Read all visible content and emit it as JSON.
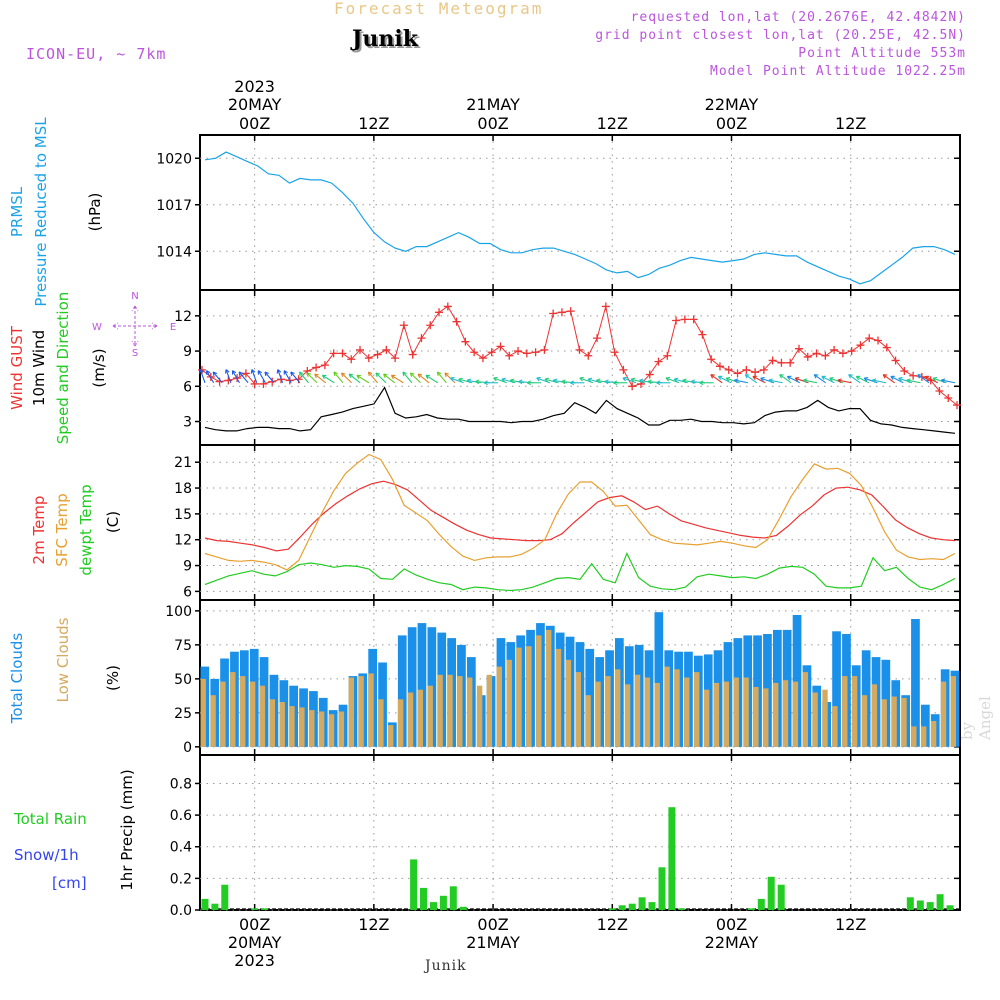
{
  "header": {
    "title_top": "Forecast Meteogram",
    "station": "Junik",
    "model": "ICON-EU, ~ 7km",
    "requested": "requested lon,lat (20.2676E, 42.4842N)",
    "grid_point": "grid point closest lon,lat (20.25E, 42.5N)",
    "point_alt": "Point Altitude 553m",
    "model_alt": "Model Point Altitude 1022.25m",
    "bottom_label": "Junik",
    "watermark": "by Angel"
  },
  "time_axis": {
    "top_year": "2023",
    "ticks": [
      {
        "hour": 0,
        "label": "00Z",
        "date": "20MAY"
      },
      {
        "hour": 12,
        "label": "12Z",
        "date": ""
      },
      {
        "hour": 24,
        "label": "00Z",
        "date": "21MAY"
      },
      {
        "hour": 36,
        "label": "12Z",
        "date": ""
      },
      {
        "hour": 48,
        "label": "00Z",
        "date": "22MAY"
      },
      {
        "hour": 60,
        "label": "12Z",
        "date": ""
      }
    ],
    "bottom_year": "2023",
    "range_hours": [
      -5.5,
      71
    ]
  },
  "colors": {
    "pressure": "#1aa3e8",
    "gust": "#ee3333",
    "wind": "#000000",
    "temp": "#ee3333",
    "sfc_temp": "#e8a030",
    "dewpt": "#22cc22",
    "total_clouds": "#1a90e8",
    "low_clouds": "#d4aa60",
    "rain": "#22cc22",
    "snow": "#3344ee",
    "meta": "#bb55dd",
    "title_top": "#e8c888"
  },
  "chart_data": [
    {
      "type": "line",
      "ylabel_1": "PRMSL",
      "ylabel_2": "Pressure Reduced to MSL",
      "unit": "(hPa)",
      "yticks": [
        1014,
        1017,
        1020
      ],
      "ylim": [
        1011.5,
        1021.5
      ],
      "series": [
        {
          "values": [
            1019.9,
            1020.0,
            1020.4,
            1020.1,
            1019.8,
            1019.5,
            1019.0,
            1018.9,
            1018.4,
            1018.7,
            1018.6,
            1018.6,
            1018.4,
            1017.8,
            1017.1,
            1016.1,
            1015.2,
            1014.6,
            1014.2,
            1014.0,
            1014.3,
            1014.3,
            1014.6,
            1014.9,
            1015.2,
            1014.9,
            1014.5,
            1014.5,
            1014.1,
            1013.9,
            1013.9,
            1014.1,
            1014.2,
            1014.2,
            1014.0,
            1013.8,
            1013.5,
            1013.2,
            1012.8,
            1012.6,
            1012.7,
            1012.3,
            1012.5,
            1012.9,
            1013.1,
            1013.4,
            1013.6,
            1013.5,
            1013.4,
            1013.3,
            1013.4,
            1013.5,
            1013.8,
            1013.9,
            1013.8,
            1013.7,
            1013.7,
            1013.3,
            1013.0,
            1012.7,
            1012.4,
            1012.2,
            1011.9,
            1012.1,
            1012.6,
            1013.1,
            1013.6,
            1014.2,
            1014.3,
            1014.3,
            1014.1,
            1013.8
          ]
        }
      ]
    },
    {
      "type": "line",
      "ylabel_1": "Wind GUST",
      "ylabel_2": "10m Wind",
      "ylabel_3": "Speed and Direction",
      "unit": "(m/s)",
      "compass": {
        "n": "N",
        "s": "S",
        "e": "E",
        "w": "W"
      },
      "yticks": [
        3,
        6,
        9,
        12
      ],
      "ylim": [
        1,
        14.2
      ],
      "gust": [
        7.4,
        6.8,
        6.4,
        6.5,
        6.7,
        7.1,
        6.2,
        6.2,
        6.4,
        6.6,
        6.5,
        6.6,
        7.3,
        7.6,
        7.8,
        8.8,
        8.8,
        8.3,
        9.1,
        8.4,
        8.7,
        9.1,
        8.4,
        11.2,
        8.7,
        10.1,
        11.2,
        12.3,
        12.8,
        11.5,
        9.8,
        8.9,
        8.4,
        8.9,
        9.4,
        8.6,
        9.0,
        8.8,
        8.9,
        9.1,
        12.2,
        12.3,
        12.4,
        9.1,
        8.6,
        10.1,
        12.8,
        8.9,
        7.4,
        6.0,
        6.2,
        7.0,
        8.1,
        8.6,
        11.6,
        11.7,
        11.7,
        10.4,
        8.3,
        7.7,
        7.4,
        7.1,
        7.4,
        7.2,
        7.4,
        8.2,
        8.0,
        8.0,
        9.2,
        8.5,
        8.8,
        8.6,
        9.1,
        8.8,
        9.0,
        9.5,
        10.1,
        9.9,
        9.3,
        8.2,
        7.3,
        6.9,
        6.8,
        6.5,
        5.6,
        5.0,
        4.4
      ],
      "wind": [
        2.5,
        2.3,
        2.2,
        2.2,
        2.4,
        2.5,
        2.5,
        2.4,
        2.4,
        2.2,
        2.3,
        3.4,
        3.6,
        3.8,
        4.1,
        4.3,
        4.5,
        5.9,
        3.7,
        3.3,
        3.4,
        3.6,
        3.3,
        3.2,
        3.2,
        3.0,
        3.0,
        3.0,
        3.0,
        2.9,
        3.0,
        3.0,
        3.2,
        3.5,
        3.7,
        4.6,
        4.2,
        3.7,
        4.8,
        4.1,
        3.7,
        3.3,
        2.7,
        2.7,
        3.1,
        3.1,
        3.2,
        3.0,
        3.0,
        2.9,
        2.9,
        2.8,
        2.9,
        3.5,
        3.8,
        3.9,
        3.9,
        4.2,
        4.8,
        4.2,
        3.9,
        4.1,
        4.1,
        3.1,
        2.8,
        2.7,
        2.5,
        2.4,
        2.3,
        2.2,
        2.1,
        2.0
      ],
      "arrows_hourly": 88
    },
    {
      "type": "line",
      "ylabel_1": "2m Temp",
      "ylabel_2": "SFC Temp",
      "ylabel_3": "dewpt Temp",
      "unit": "(C)",
      "yticks": [
        6,
        9,
        12,
        15,
        18,
        21
      ],
      "ylim": [
        5,
        23
      ],
      "series": [
        {
          "name": "2m Temp",
          "values": [
            12.2,
            11.9,
            11.8,
            11.6,
            11.4,
            11.1,
            10.7,
            10.9,
            12.3,
            13.8,
            15.1,
            16.2,
            17.1,
            17.9,
            18.5,
            18.8,
            18.4,
            17.8,
            16.6,
            15.4,
            14.6,
            13.8,
            13.1,
            12.6,
            12.2,
            12.1,
            12.0,
            11.9,
            11.9,
            12.0,
            12.7,
            14.0,
            15.2,
            16.4,
            16.9,
            17.1,
            16.4,
            15.5,
            15.9,
            15.0,
            14.2,
            13.8,
            13.4,
            13.1,
            12.8,
            12.5,
            12.3,
            12.2,
            12.5,
            13.6,
            14.9,
            15.9,
            17.2,
            18.0,
            18.1,
            17.8,
            17.2,
            15.8,
            14.3,
            13.4,
            12.7,
            12.2,
            12.0,
            11.9
          ]
        },
        {
          "name": "SFC Temp",
          "values": [
            10.4,
            10.0,
            9.6,
            9.5,
            9.6,
            9.4,
            9.1,
            8.5,
            9.6,
            12.4,
            15.2,
            17.7,
            19.7,
            20.9,
            21.9,
            21.3,
            19.0,
            16.0,
            15.1,
            14.2,
            12.6,
            11.2,
            10.1,
            9.6,
            9.9,
            10.0,
            10.0,
            10.3,
            11.0,
            12.0,
            15.0,
            17.3,
            18.7,
            18.7,
            17.6,
            15.9,
            16.0,
            14.3,
            12.6,
            12.0,
            11.6,
            11.5,
            11.4,
            11.6,
            11.8,
            11.6,
            11.3,
            11.1,
            12.0,
            14.4,
            17.0,
            19.0,
            20.8,
            20.2,
            20.3,
            19.7,
            18.3,
            15.7,
            12.9,
            10.8,
            10.0,
            9.7,
            9.8,
            9.7,
            10.4
          ]
        },
        {
          "name": "dewpt Temp",
          "values": [
            6.8,
            7.3,
            7.8,
            8.1,
            8.4,
            8.0,
            7.8,
            8.3,
            9.1,
            9.3,
            9.1,
            8.8,
            9.0,
            8.9,
            8.6,
            7.5,
            7.4,
            8.6,
            7.9,
            7.4,
            7.0,
            6.8,
            6.2,
            6.5,
            6.4,
            6.2,
            6.1,
            6.2,
            6.5,
            7.0,
            7.5,
            7.6,
            7.4,
            9.2,
            7.4,
            7.0,
            10.4,
            7.6,
            6.6,
            6.3,
            6.2,
            6.5,
            7.7,
            8.0,
            7.8,
            7.6,
            7.7,
            7.5,
            8.0,
            8.7,
            8.9,
            8.8,
            8.0,
            6.6,
            6.4,
            6.4,
            6.6,
            9.9,
            8.4,
            8.8,
            7.5,
            6.5,
            6.2,
            6.8,
            7.5
          ]
        }
      ]
    },
    {
      "type": "bar",
      "ylabel_1": "Total Clouds",
      "ylabel_2": "Low Clouds",
      "unit": "(%)",
      "yticks": [
        0,
        25,
        50,
        75,
        100
      ],
      "ylim": [
        -6,
        108
      ],
      "series": [
        {
          "name": "Total Clouds",
          "values": [
            59,
            50,
            65,
            70,
            71,
            72,
            66,
            53,
            49,
            45,
            43,
            41,
            36,
            27,
            31,
            52,
            54,
            72,
            62,
            18,
            82,
            88,
            91,
            88,
            84,
            80,
            75,
            66,
            38,
            52,
            80,
            77,
            82,
            86,
            91,
            89,
            84,
            81,
            77,
            72,
            66,
            71,
            80,
            74,
            75,
            71,
            99,
            71,
            70,
            70,
            67,
            68,
            71,
            77,
            80,
            82,
            82,
            83,
            86,
            86,
            97,
            60,
            45,
            33,
            85,
            83,
            60,
            71,
            66,
            64,
            49,
            38,
            94,
            31,
            24,
            57,
            56
          ]
        },
        {
          "name": "Low Clouds",
          "values": [
            50,
            38,
            48,
            55,
            52,
            48,
            45,
            35,
            33,
            30,
            29,
            27,
            26,
            24,
            26,
            51,
            52,
            54,
            35,
            16,
            35,
            40,
            42,
            45,
            53,
            53,
            52,
            51,
            45,
            53,
            59,
            64,
            73,
            74,
            82,
            86,
            72,
            64,
            55,
            38,
            48,
            52,
            57,
            46,
            53,
            51,
            47,
            59,
            57,
            51,
            55,
            42,
            47,
            48,
            51,
            51,
            44,
            43,
            47,
            49,
            48,
            55,
            40,
            42,
            30,
            52,
            52,
            38,
            46,
            35,
            37,
            36,
            15,
            15,
            19,
            48,
            52
          ]
        }
      ]
    },
    {
      "type": "bar",
      "ylabel_1": "Total  Rain",
      "ylabel_2": "Snow/1h",
      "ylabel_3": "[cm]",
      "yaxis_title": "1hr Precip (mm)",
      "yticks": [
        0,
        0.2,
        0.4,
        0.6,
        0.8
      ],
      "ylim": [
        0,
        0.98
      ],
      "series": [
        {
          "name": "Total Rain",
          "start_hour": -5,
          "values": [
            0.07,
            0.04,
            0.16,
            0,
            0,
            0.01,
            0.01,
            0,
            0,
            0,
            0,
            0,
            0,
            0,
            0,
            0,
            0,
            0,
            0,
            0,
            0,
            0.32,
            0.14,
            0.05,
            0.09,
            0.15,
            0.02,
            0,
            0,
            0,
            0,
            0,
            0,
            0,
            0,
            0,
            0,
            0,
            0,
            0,
            0,
            0.01,
            0.03,
            0.04,
            0.08,
            0.05,
            0.27,
            0.65,
            0.01,
            0,
            0,
            0,
            0,
            0,
            0,
            0.01,
            0.07,
            0.21,
            0.16,
            0,
            0,
            0,
            0,
            0,
            0,
            0,
            0,
            0,
            0,
            0,
            0,
            0.08,
            0.06,
            0.05,
            0.1,
            0.03,
            0,
            0,
            0
          ]
        }
      ]
    }
  ]
}
